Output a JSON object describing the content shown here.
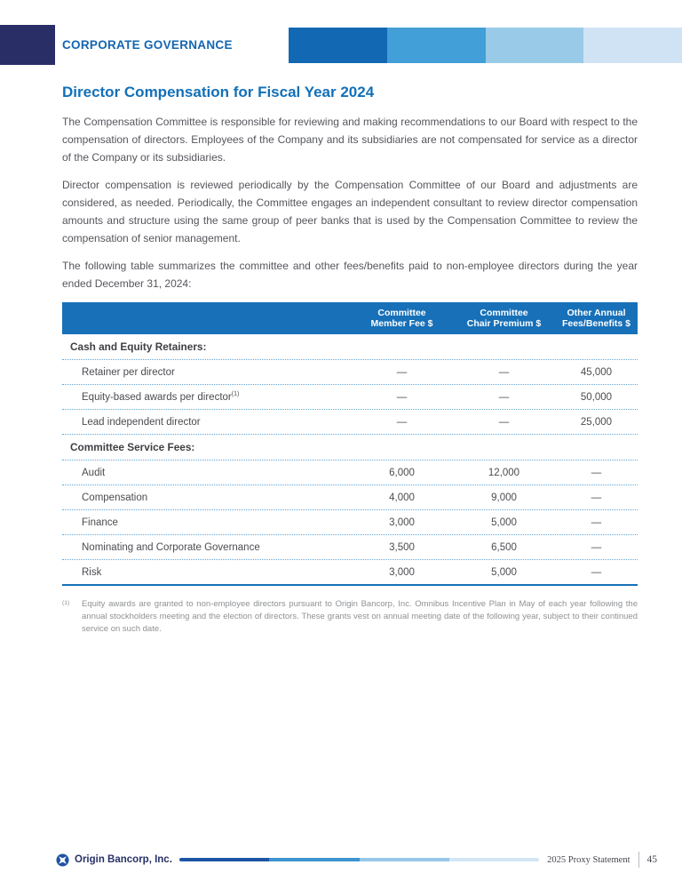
{
  "header": {
    "eyebrow": "CORPORATE GOVERNANCE"
  },
  "article": {
    "title": "Director Compensation for Fiscal Year 2024",
    "paragraphs": [
      "The Compensation Committee is responsible for reviewing and making recommendations to our Board with respect to the compensation of directors. Employees of the Company and its subsidiaries are not compensated for service as a director of the Company or its subsidiaries.",
      "Director compensation is reviewed periodically by the Compensation Committee of our Board and adjustments are considered, as needed. Periodically, the Committee engages an independent consultant to review director compensation amounts and structure using the same group of peer banks that is used by the Compensation Committee to review the compensation of senior management.",
      "The following table summarizes the committee and other fees/benefits paid to non-employee directors during the year ended December 31, 2024:"
    ]
  },
  "table": {
    "columns": [
      {
        "line1": "Committee",
        "line2": "Member Fee $"
      },
      {
        "line1": "Committee",
        "line2": "Chair Premium $"
      },
      {
        "line1": "Other Annual",
        "line2": "Fees/Benefits $"
      }
    ],
    "sections": [
      {
        "label": "Cash and Equity Retainers:",
        "rows": [
          {
            "label": "Retainer per director",
            "sup": "",
            "values": [
              "—",
              "—",
              "45,000"
            ]
          },
          {
            "label": "Equity-based awards per director",
            "sup": "(1)",
            "values": [
              "—",
              "—",
              "50,000"
            ]
          },
          {
            "label": "Lead independent director",
            "sup": "",
            "values": [
              "—",
              "—",
              "25,000"
            ]
          }
        ]
      },
      {
        "label": "Committee Service Fees:",
        "rows": [
          {
            "label": "Audit",
            "sup": "",
            "values": [
              "6,000",
              "12,000",
              "—"
            ]
          },
          {
            "label": "Compensation",
            "sup": "",
            "values": [
              "4,000",
              "9,000",
              "—"
            ]
          },
          {
            "label": "Finance",
            "sup": "",
            "values": [
              "3,000",
              "5,000",
              "—"
            ]
          },
          {
            "label": "Nominating and Corporate Governance",
            "sup": "",
            "values": [
              "3,500",
              "6,500",
              "—"
            ]
          },
          {
            "label": "Risk",
            "sup": "",
            "values": [
              "3,000",
              "5,000",
              "—"
            ]
          }
        ]
      }
    ]
  },
  "footnote": {
    "marker": "(1)",
    "text": "Equity awards are granted to non-employee directors pursuant to Origin Bancorp, Inc. Omnibus Incentive Plan in May of each year following the annual stockholders meeting and the election of directors. These grants vest on annual meeting date of the following year, subject to their continued service on such date."
  },
  "footer": {
    "company": "Origin Bancorp, Inc.",
    "document": "2025 Proxy Statement",
    "page_number": "45"
  },
  "colors": {
    "accent_blue": "#1770b8",
    "navy": "#2a2e67",
    "header_bar_segments": [
      "#1268b3",
      "#429fd7",
      "#99cbe9",
      "#d0e3f4"
    ],
    "footer_line_segments": [
      "#1d55a5",
      "#3d94d0",
      "#96c7ea",
      "#d3e6f5"
    ],
    "dotted_rule": "#5fa8d8"
  }
}
